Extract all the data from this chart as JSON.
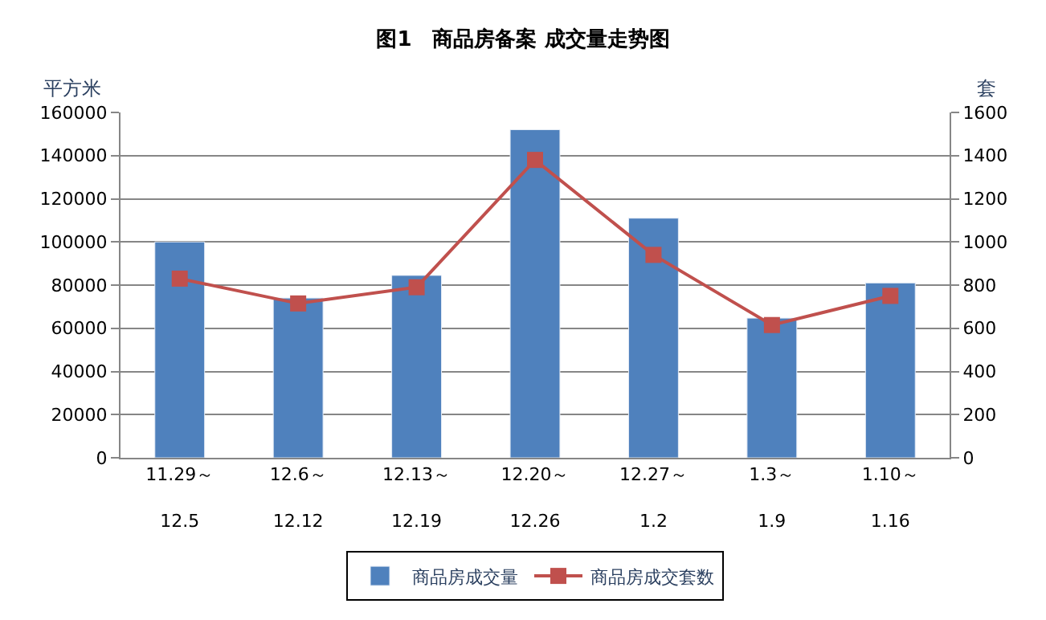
{
  "chart_data": {
    "type": "bar",
    "title": "图1　商品房备案 成交量走势图",
    "ylabel": "平方米",
    "y2label": "套",
    "categories": [
      "11.29～\n12.5",
      "12.6～\n12.12",
      "12.13～\n12.19",
      "12.20～\n12.26",
      "12.27～\n1.2",
      "1.3～\n1.9",
      "1.10～\n1.16"
    ],
    "series": [
      {
        "name": "商品房成交量",
        "color": "#4f81bd",
        "values": [
          100000,
          74000,
          84500,
          152000,
          111000,
          64700,
          81000
        ]
      },
      {
        "name": "商品房成交套数",
        "type": "line",
        "axis": "y2",
        "color": "#c0504d",
        "marker": "square",
        "values": [
          830,
          715,
          790,
          1380,
          940,
          615,
          750
        ]
      }
    ],
    "ylim": [
      0,
      160000
    ],
    "yticks": [
      0,
      20000,
      40000,
      60000,
      80000,
      100000,
      120000,
      140000,
      160000
    ],
    "y2lim": [
      0,
      1600
    ],
    "y2ticks": [
      0,
      200,
      400,
      600,
      800,
      1000,
      1200,
      1400,
      1600
    ],
    "grid": "y",
    "legend": "bottom"
  }
}
